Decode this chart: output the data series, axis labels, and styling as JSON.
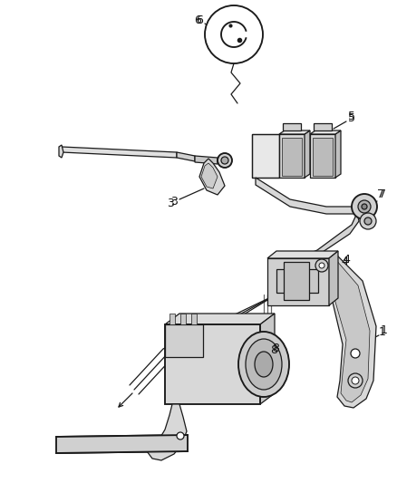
{
  "bg_color": "#ffffff",
  "line_color": "#1a1a1a",
  "label_color": "#111111",
  "fig_w": 4.38,
  "fig_h": 5.33,
  "dpi": 100,
  "lw": 0.9,
  "note_color": "#888888"
}
